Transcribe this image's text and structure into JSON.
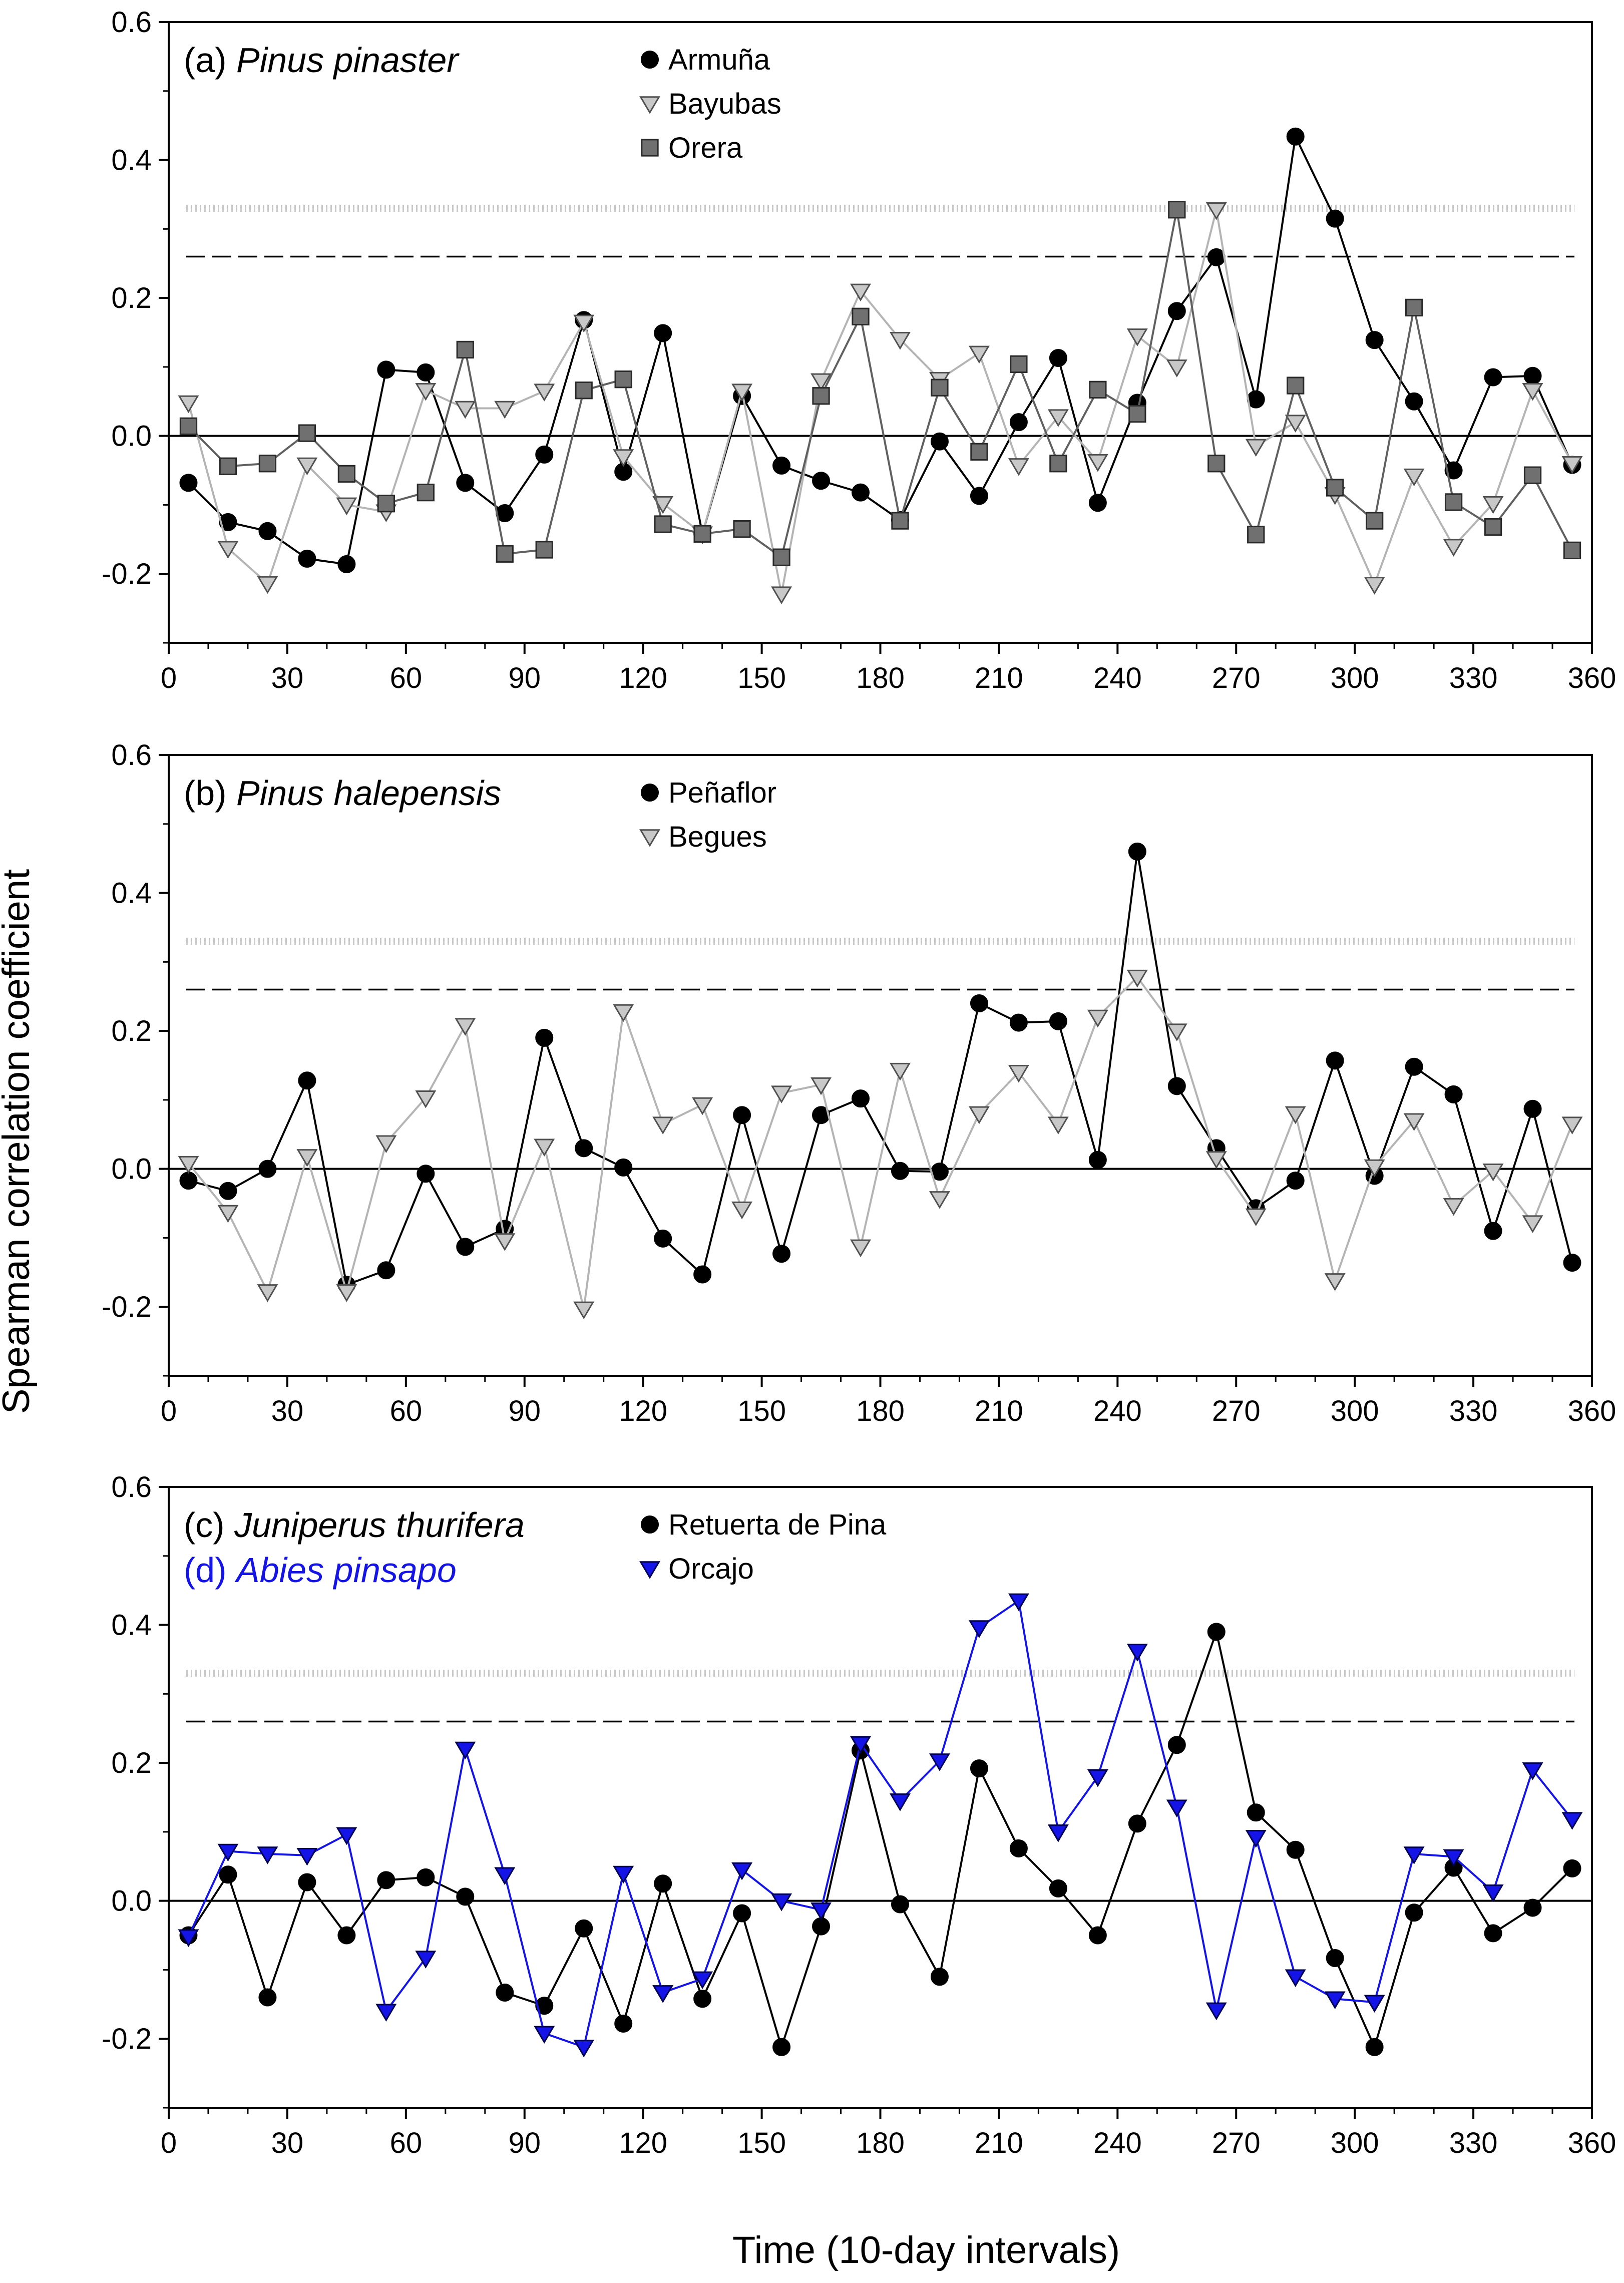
{
  "chart_data": {
    "type": "line",
    "ylabel": "Spearman correlation coefficient",
    "xlabel": "Time (10-day intervals)",
    "xlim": [
      0,
      360
    ],
    "ylim": [
      -0.3,
      0.6
    ],
    "x_ticks": [
      0,
      30,
      60,
      90,
      120,
      150,
      180,
      210,
      240,
      270,
      300,
      330,
      360
    ],
    "x_tick_labels": [
      "0",
      "30",
      "60",
      "90",
      "120",
      "150",
      "180",
      "210",
      "240",
      "270",
      "300",
      "330",
      "360"
    ],
    "y_ticks": [
      -0.2,
      0.0,
      0.2,
      0.4,
      0.6
    ],
    "y_tick_labels": [
      "-0.2",
      "0.0",
      "0.2",
      "0.4",
      "0.6"
    ],
    "x": [
      5,
      15,
      25,
      35,
      45,
      55,
      65,
      75,
      85,
      95,
      105,
      115,
      125,
      135,
      145,
      155,
      165,
      175,
      185,
      195,
      205,
      215,
      225,
      235,
      245,
      255,
      265,
      275,
      285,
      295,
      305,
      315,
      325,
      335,
      345,
      355
    ],
    "reference_lines": [
      {
        "name": "significance-p05",
        "value": 0.26,
        "style": "dashed",
        "color": "#000000"
      },
      {
        "name": "significance-p01",
        "value": 0.33,
        "style": "dotted",
        "color": "#c8c8c8"
      },
      {
        "name": "zero-line",
        "value": 0.0,
        "style": "solid",
        "color": "#000000"
      }
    ],
    "panels": [
      {
        "id": "a",
        "title_prefix": "(a) ",
        "species": "Pinus pinaster",
        "title_color": "#000000",
        "series": [
          {
            "name": "Armuña",
            "marker": "circle",
            "line_color": "#000000",
            "fill": "#000000",
            "edge": "#000000",
            "values": [
              -0.068,
              -0.125,
              -0.138,
              -0.178,
              -0.186,
              0.096,
              0.092,
              -0.068,
              -0.112,
              -0.027,
              0.168,
              -0.052,
              0.149,
              -0.142,
              0.058,
              -0.043,
              -0.065,
              -0.082,
              -0.122,
              -0.008,
              -0.087,
              0.02,
              0.113,
              -0.097,
              0.048,
              0.181,
              0.259,
              0.053,
              0.434,
              0.315,
              0.139,
              0.05,
              -0.05,
              0.085,
              0.087,
              -0.042
            ]
          },
          {
            "name": "Bayubas",
            "marker": "triangle-down",
            "line_color": "#b4b4b4",
            "fill": "#c8c8c8",
            "edge": "#505050",
            "values": [
              0.048,
              -0.163,
              -0.214,
              -0.042,
              -0.1,
              -0.11,
              0.066,
              0.04,
              0.04,
              0.065,
              0.165,
              -0.03,
              -0.098,
              -0.142,
              0.065,
              -0.229,
              0.08,
              0.21,
              0.14,
              0.082,
              0.12,
              -0.043,
              0.028,
              -0.037,
              0.145,
              0.1,
              0.328,
              -0.015,
              0.02,
              -0.085,
              -0.215,
              -0.058,
              -0.16,
              -0.098,
              0.066,
              -0.04
            ]
          },
          {
            "name": "Orera",
            "marker": "square",
            "line_color": "#606060",
            "fill": "#707070",
            "edge": "#2a2a2a",
            "values": [
              0.014,
              -0.044,
              -0.04,
              0.004,
              -0.055,
              -0.098,
              -0.082,
              0.125,
              -0.171,
              -0.165,
              0.066,
              0.082,
              -0.128,
              -0.142,
              -0.135,
              -0.176,
              0.058,
              0.173,
              -0.123,
              0.07,
              -0.023,
              0.104,
              -0.04,
              0.067,
              0.032,
              0.328,
              -0.04,
              -0.143,
              0.073,
              -0.075,
              -0.123,
              0.186,
              -0.096,
              -0.132,
              -0.057,
              -0.166
            ]
          }
        ]
      },
      {
        "id": "b",
        "title_prefix": "(b) ",
        "species": "Pinus halepensis",
        "title_color": "#000000",
        "series": [
          {
            "name": "Peñaflor",
            "marker": "circle",
            "line_color": "#000000",
            "fill": "#000000",
            "edge": "#000000",
            "values": [
              -0.017,
              -0.032,
              0.0,
              0.128,
              -0.168,
              -0.147,
              -0.007,
              -0.113,
              -0.087,
              0.19,
              0.03,
              0.002,
              -0.101,
              -0.153,
              0.078,
              -0.123,
              0.078,
              0.102,
              -0.003,
              -0.004,
              0.24,
              0.212,
              0.214,
              0.013,
              0.46,
              0.12,
              0.03,
              -0.057,
              -0.017,
              0.157,
              -0.01,
              0.148,
              0.108,
              -0.09,
              0.087,
              -0.136
            ]
          },
          {
            "name": "Begues",
            "marker": "triangle-down",
            "line_color": "#b4b4b4",
            "fill": "#c8c8c8",
            "edge": "#505050",
            "values": [
              0.008,
              -0.063,
              -0.178,
              0.018,
              -0.178,
              0.038,
              0.103,
              0.208,
              -0.104,
              0.033,
              -0.203,
              0.228,
              0.065,
              0.093,
              -0.058,
              0.11,
              0.122,
              -0.113,
              0.143,
              -0.043,
              0.08,
              0.14,
              0.065,
              0.22,
              0.278,
              0.2,
              0.015,
              -0.068,
              0.08,
              -0.162,
              0.003,
              0.07,
              -0.053,
              -0.003,
              -0.078,
              0.065
            ]
          }
        ]
      },
      {
        "id": "c",
        "title_prefix": "(c) ",
        "species": "Juniperus thurifera",
        "title_color": "#000000",
        "second_title_prefix": "(d) ",
        "second_species": "Abies pinsapo",
        "second_title_color": "#1414e6",
        "series": [
          {
            "name": "Retuerta de Pina",
            "marker": "circle",
            "line_color": "#000000",
            "fill": "#000000",
            "edge": "#000000",
            "values": [
              -0.05,
              0.038,
              -0.14,
              0.027,
              -0.05,
              0.03,
              0.034,
              0.006,
              -0.133,
              -0.152,
              -0.04,
              -0.178,
              0.025,
              -0.142,
              -0.018,
              -0.212,
              -0.037,
              0.218,
              -0.005,
              -0.11,
              0.192,
              0.076,
              0.018,
              -0.05,
              0.112,
              0.226,
              0.39,
              0.128,
              0.074,
              -0.083,
              -0.212,
              -0.017,
              0.048,
              -0.047,
              -0.01,
              0.047
            ]
          },
          {
            "name": "Orcajo",
            "marker": "triangle-down",
            "line_color": "#1414e6",
            "fill": "#1414e6",
            "edge": "#000050",
            "values": [
              -0.052,
              0.072,
              0.068,
              0.066,
              0.096,
              -0.16,
              -0.083,
              0.22,
              0.038,
              -0.192,
              -0.212,
              0.04,
              -0.133,
              -0.113,
              0.045,
              0.0,
              -0.013,
              0.228,
              0.145,
              0.203,
              0.396,
              0.435,
              0.1,
              0.18,
              0.362,
              0.136,
              -0.158,
              0.092,
              -0.11,
              -0.142,
              -0.147,
              0.068,
              0.064,
              0.013,
              0.19,
              0.118
            ]
          }
        ]
      }
    ]
  }
}
